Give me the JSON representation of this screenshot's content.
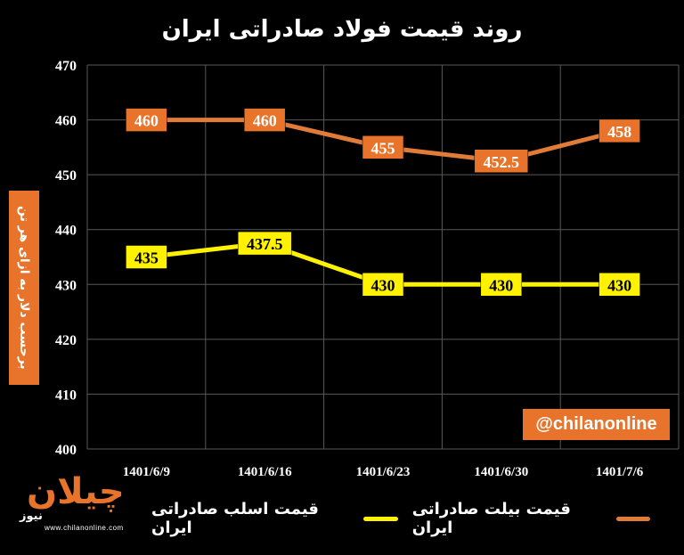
{
  "chart_data": {
    "type": "line",
    "title": "روند قیمت فولاد صادراتی ایران",
    "ylabel": "برحسب دلار به ازای هر تن",
    "xlabel": "",
    "categories": [
      "1401/6/9",
      "1401/6/16",
      "1401/6/23",
      "1401/6/30",
      "1401/7/6"
    ],
    "ylim": [
      400,
      470
    ],
    "yticks": [
      400,
      410,
      420,
      430,
      440,
      450,
      460,
      470
    ],
    "grid": true,
    "legend_position": "bottom",
    "series": [
      {
        "name": "قیمت بیلت صادراتی ایران",
        "values": [
          460,
          460,
          455,
          452.5,
          458
        ],
        "labels": [
          "460",
          "460",
          "455",
          "452.5",
          "458"
        ],
        "color": "#E07B39",
        "label_bg": "#E8732A",
        "label_color": "#FFFFFF"
      },
      {
        "name": "قیمت اسلب صادراتی ایران",
        "values": [
          435,
          437.5,
          430,
          430,
          430
        ],
        "labels": [
          "435",
          "437.5",
          "430",
          "430",
          "430"
        ],
        "color": "#FFF200",
        "label_bg": "#FFF200",
        "label_color": "#000000"
      }
    ]
  },
  "watermark": "@chilanonline",
  "logo": {
    "word": "چیلان",
    "mark": "نیوز",
    "site": "www.chilanonline.com"
  },
  "colors": {
    "background": "#000000",
    "grid": "#595959",
    "axis_text": "#FFFFFF",
    "accent": "#E8732A"
  }
}
